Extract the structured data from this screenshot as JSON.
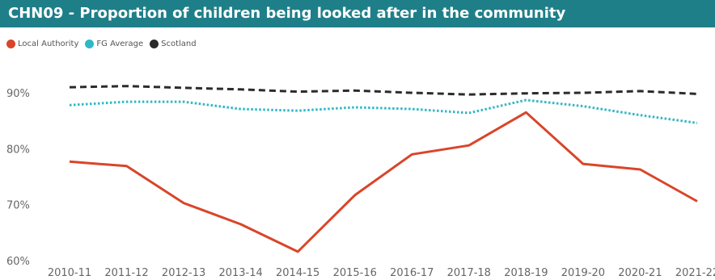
{
  "title": "CHN09 - Proportion of children being looked after in the community",
  "colors": {
    "header_bg": "#1f7f89",
    "local_authority": "#d9452a",
    "fg_average": "#2fb8c6",
    "scotland": "#2b2b2b"
  },
  "chart_data": {
    "type": "line",
    "title": "CHN09 - Proportion of children being looked after in the community",
    "x": [
      "2010-11",
      "2011-12",
      "2012-13",
      "2013-14",
      "2014-15",
      "2015-16",
      "2016-17",
      "2017-18",
      "2018-19",
      "2019-20",
      "2020-21",
      "2021-22"
    ],
    "xtick_labels": [
      "2010-11",
      "2011-12",
      "2012-13",
      "2013-14",
      "2014-15",
      "2015-16",
      "2016-17",
      "2017-18",
      "2018-19",
      "2019-20",
      "2020-21",
      "2021-22"
    ],
    "ylim": [
      60,
      95
    ],
    "yticks": [
      60,
      70,
      80,
      90
    ],
    "ytick_labels": [
      "60%",
      "70%",
      "80%",
      "90%"
    ],
    "grid": false,
    "legend_position": "top-left",
    "series": [
      {
        "name": "Local Authority",
        "style": "solid",
        "color": "#d9452a",
        "values": [
          77.7,
          76.9,
          70.3,
          66.5,
          61.6,
          71.7,
          79.0,
          80.6,
          86.5,
          77.3,
          76.3,
          70.6
        ]
      },
      {
        "name": "FG Average",
        "style": "dotted",
        "color": "#2fb8c6",
        "values": [
          87.8,
          88.4,
          88.4,
          87.1,
          86.8,
          87.4,
          87.1,
          86.4,
          88.7,
          87.6,
          86.0,
          84.6
        ]
      },
      {
        "name": "Scotland",
        "style": "dashed",
        "color": "#2b2b2b",
        "values": [
          91.0,
          91.2,
          90.9,
          90.6,
          90.2,
          90.4,
          90.0,
          89.7,
          89.9,
          90.0,
          90.3,
          89.8
        ]
      }
    ]
  }
}
